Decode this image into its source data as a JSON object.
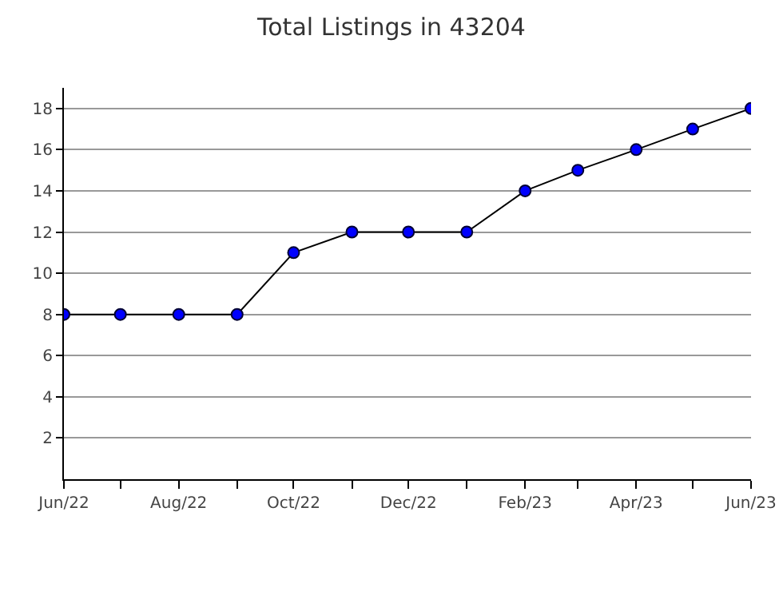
{
  "chart_data": {
    "type": "line",
    "title": "Total Listings in 43204",
    "x": [
      "2022-06",
      "2022-07",
      "2022-08",
      "2022-09",
      "2022-10",
      "2022-11",
      "2022-12",
      "2023-01",
      "2023-02",
      "2023-03",
      "2023-04",
      "2023-05",
      "2023-06"
    ],
    "series": [
      {
        "color": "#0000ff",
        "values": [
          8,
          8,
          8,
          8,
          11,
          12,
          12,
          12,
          14,
          15,
          16,
          17,
          18
        ]
      }
    ],
    "xlim": [
      "2022-06",
      "2023-06"
    ],
    "xticks": [
      {
        "value": "2022-06",
        "label": "Jun/22"
      },
      {
        "value": "2022-07",
        "label": null
      },
      {
        "value": "2022-08",
        "label": "Aug/22"
      },
      {
        "value": "2022-09",
        "label": null
      },
      {
        "value": "2022-10",
        "label": "Oct/22"
      },
      {
        "value": "2022-11",
        "label": null
      },
      {
        "value": "2022-12",
        "label": "Dec/22"
      },
      {
        "value": "2023-01",
        "label": null
      },
      {
        "value": "2023-02",
        "label": "Feb/23"
      },
      {
        "value": "2023-03",
        "label": null
      },
      {
        "value": "2023-04",
        "label": "Apr/23"
      },
      {
        "value": "2023-05",
        "label": null
      },
      {
        "value": "2023-06",
        "label": "Jun/23"
      }
    ],
    "ylim": [
      0,
      19
    ],
    "yticks": [
      2,
      4,
      6,
      8,
      10,
      12,
      14,
      16,
      18
    ],
    "grid": "y",
    "marker": "circle",
    "line_style": "solid"
  }
}
